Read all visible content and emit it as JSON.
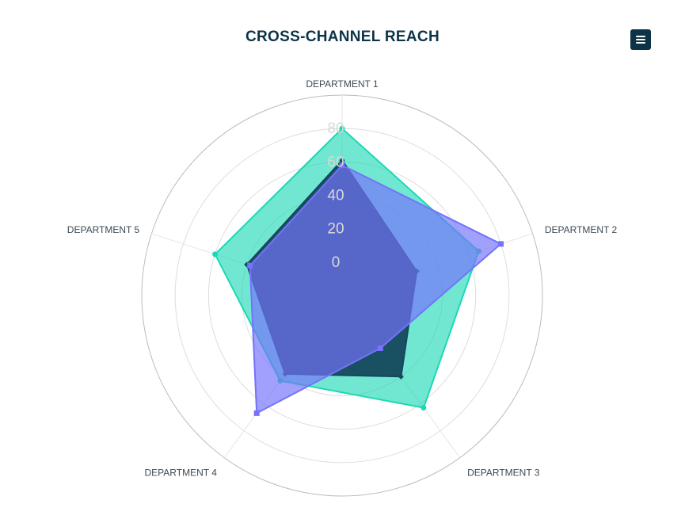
{
  "toolbar": {
    "menu_icon": "hamburger-menu-icon"
  },
  "colors": {
    "title": "#0d3347",
    "ring": "#cccccc",
    "outer_ring": "#bbbbbb",
    "spoke": "#e6e6e6",
    "tick": "#d8d8d8",
    "axis_label": "#3b4a55",
    "menu_button": "#0d3347"
  },
  "chart_data": {
    "type": "radar",
    "title": "CROSS-CHANNEL REACH",
    "axes": [
      "DEPARTMENT 1",
      "DEPARTMENT 2",
      "DEPARTMENT 3",
      "DEPARTMENT 4",
      "DEPARTMENT 5"
    ],
    "r_ticks": [
      0,
      20,
      40,
      60,
      80
    ],
    "r_range": [
      -20,
      100
    ],
    "grid": true,
    "series": [
      {
        "values": [
          80,
          66,
          63,
          43,
          60
        ],
        "color": "#1ad9b4",
        "fill_opacity": 0.62,
        "marker": "circle"
      },
      {
        "values": [
          61,
          27,
          40,
          38,
          40
        ],
        "color": "#14485c",
        "fill_opacity": 0.95,
        "marker": "diamond"
      },
      {
        "values": [
          58,
          80,
          19,
          67,
          38
        ],
        "color": "#7473fb",
        "fill_opacity": 0.68,
        "marker": "square"
      }
    ]
  }
}
